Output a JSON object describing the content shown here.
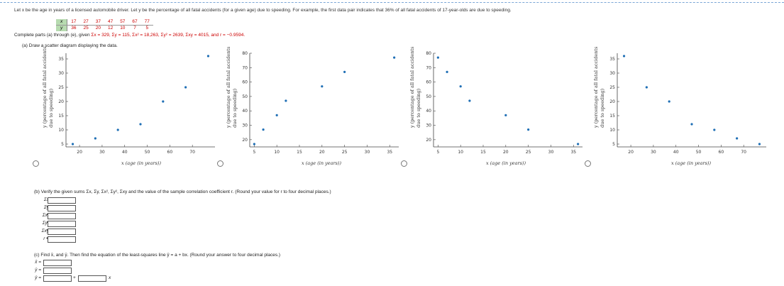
{
  "intro_text": "Let x be the age in years of a licensed automobile driver. Let y be the percentage of all fatal accidents (for a given age) due to speeding. For example, the first data pair indicates that 36% of all fatal accidents of 17-year-olds are due to speeding.",
  "table": {
    "x_label": "x",
    "y_label": "y",
    "x_values": [
      "17",
      "27",
      "37",
      "47",
      "57",
      "67",
      "77"
    ],
    "y_values": [
      "36",
      "25",
      "20",
      "12",
      "10",
      "7",
      "5"
    ]
  },
  "complete_prefix": "Complete parts (a) through (e), given ",
  "complete_sums": "Σx = 329, Σy = 115, Σx² = 18,263, Σy² = 2639, Σxy = 4015, and r = −0.9594.",
  "part_a": "(a) Draw a scatter diagram displaying the data.",
  "plot_ylabel_line1": "y (percentage of all fatal accidents",
  "plot_ylabel_line2": "due to speeding)",
  "plot_xlabel": "x (age (in years))",
  "part_b": "(b) Verify the given sums Σx, Σy, Σx², Σy², Σxy and the value of the sample correlation coefficient r. (Round your value for r to four decimal places.)",
  "sum_labels": [
    "Σx =",
    "Σy =",
    "Σx² =",
    "Σy² =",
    "Σxy =",
    "r ="
  ],
  "part_c": "(c) Find x̄, and ȳ. Then find the equation of the least-squares line ŷ = a + bx. (Round your answer to four decimal places.)",
  "mean_labels": [
    "x̄ =",
    "ȳ ="
  ],
  "line_label": "ŷ =",
  "line_plus": "+",
  "line_x": "x",
  "colors": {
    "point": "#1f6fb5",
    "header_bg": "#b7dbb0",
    "value_red": "#cc0000"
  },
  "chart_data": [
    {
      "type": "scatter",
      "title": "",
      "xlabel": "x (age (in years))",
      "ylabel": "y (percentage of all fatal accidents due to speeding)",
      "x": [
        17,
        27,
        37,
        47,
        57,
        67,
        77
      ],
      "y": [
        5,
        7,
        10,
        12,
        20,
        25,
        36
      ],
      "xticks": [
        20,
        30,
        40,
        50,
        60,
        70
      ],
      "yticks": [
        5,
        10,
        15,
        20,
        25,
        30,
        35
      ],
      "xlim": [
        14,
        80
      ],
      "ylim": [
        4,
        37
      ]
    },
    {
      "type": "scatter",
      "title": "",
      "xlabel": "x (age (in years))",
      "ylabel": "y (percentage of all fatal accidents due to speeding)",
      "x": [
        5,
        7,
        10,
        12,
        20,
        25,
        36
      ],
      "y": [
        17,
        27,
        37,
        47,
        57,
        67,
        77
      ],
      "xticks": [
        5,
        10,
        15,
        20,
        25,
        30,
        35
      ],
      "yticks": [
        20,
        30,
        40,
        50,
        60,
        70,
        80
      ],
      "xlim": [
        4,
        37
      ],
      "ylim": [
        15,
        80
      ]
    },
    {
      "type": "scatter",
      "title": "",
      "xlabel": "x (age (in years))",
      "ylabel": "y (percentage of all fatal accidents due to speeding)",
      "x": [
        5,
        7,
        10,
        12,
        20,
        25,
        36
      ],
      "y": [
        77,
        67,
        57,
        47,
        37,
        27,
        17
      ],
      "xticks": [
        5,
        10,
        15,
        20,
        25,
        30,
        35
      ],
      "yticks": [
        20,
        30,
        40,
        50,
        60,
        70,
        80
      ],
      "xlim": [
        4,
        37
      ],
      "ylim": [
        15,
        80
      ]
    },
    {
      "type": "scatter",
      "title": "",
      "xlabel": "x (age (in years))",
      "ylabel": "y (percentage of all fatal accidents due to speeding)",
      "x": [
        17,
        27,
        37,
        47,
        57,
        67,
        77
      ],
      "y": [
        36,
        25,
        20,
        12,
        10,
        7,
        5
      ],
      "xticks": [
        20,
        30,
        40,
        50,
        60,
        70
      ],
      "yticks": [
        5,
        10,
        15,
        20,
        25,
        30,
        35
      ],
      "xlim": [
        14,
        80
      ],
      "ylim": [
        4,
        37
      ]
    }
  ]
}
